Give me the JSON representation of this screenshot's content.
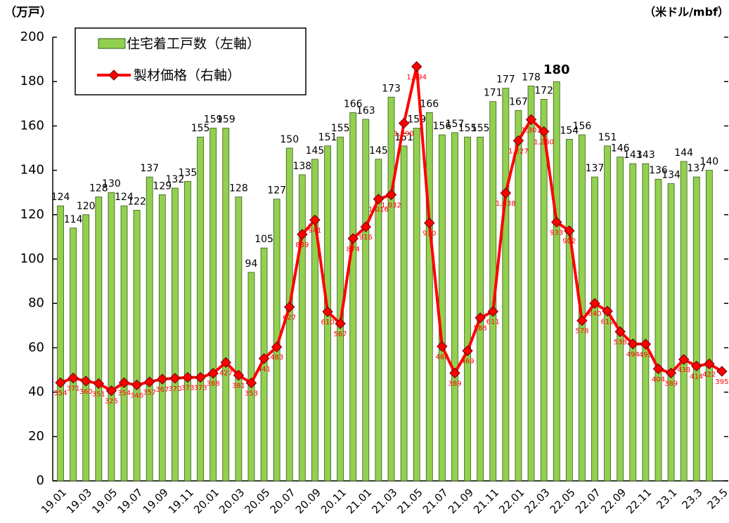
{
  "chart_data": {
    "type": "bar_line",
    "y_label": "（万戸）",
    "y2_label": "（米ドル/mbf）",
    "categories": [
      "19.01",
      null,
      "19.03",
      null,
      "19.05",
      null,
      "19.07",
      null,
      "19.09",
      null,
      "19.11",
      null,
      "20.01",
      null,
      "20.03",
      null,
      "20.05",
      null,
      "20.07",
      null,
      "20.09",
      null,
      "20.11",
      null,
      "21.01",
      null,
      "21.03",
      null,
      "21.05",
      null,
      "21.07",
      null,
      "21.09",
      null,
      "21.11",
      null,
      "22.01",
      null,
      "22.03",
      null,
      "22.05",
      null,
      "22.07",
      null,
      "22.09",
      null,
      "22.11",
      null,
      "23.1",
      null,
      "23.3",
      null,
      "23.5"
    ],
    "series": [
      {
        "name": "住宅着工戸数（左軸）",
        "color": "#92d050",
        "kind": "bar",
        "values": [
          124,
          114,
          120,
          128,
          130,
          124,
          122,
          137,
          129,
          132,
          135,
          155,
          159,
          159,
          128,
          94,
          105,
          127,
          150,
          138,
          145,
          151,
          155,
          166,
          163,
          145,
          173,
          151,
          159,
          166,
          156,
          157,
          155,
          155,
          171,
          177,
          167,
          178,
          172,
          180,
          154,
          156,
          137,
          151,
          146,
          143,
          143,
          136,
          134,
          144,
          137,
          140,
          null
        ]
      },
      {
        "name": "製材価格（右軸）",
        "color": "#ff0000",
        "kind": "line",
        "axis": "y2",
        "values": [
          354,
          371,
          360,
          351,
          325,
          354,
          346,
          357,
          367,
          370,
          373,
          373,
          388,
          427,
          381,
          353,
          441,
          483,
          627,
          889,
          941,
          610,
          567,
          874,
          916,
          1016,
          1032,
          1290,
          1494,
          930,
          485,
          389,
          469,
          588,
          611,
          1038,
          1227,
          1303,
          1260,
          933,
          902,
          578,
          640,
          612,
          538,
          494,
          493,
          404,
          389,
          438,
          414,
          422,
          395
        ],
        "value_labels": [
          "354",
          "371",
          "360",
          "351",
          "325",
          "354",
          "346",
          "357",
          "367",
          "370",
          "373",
          "373",
          "388",
          "427",
          "381",
          "353",
          "441",
          "483",
          "627",
          "889",
          "941",
          "610",
          "567",
          "874",
          "916",
          "1,016",
          "1,032",
          "1,290",
          "1,494",
          "930",
          "485",
          "389",
          "469",
          "588",
          "611",
          "1,038",
          "1,227",
          "1,303",
          "1,260",
          "933",
          "902",
          "578",
          "640",
          "612",
          "538",
          "494",
          "493",
          "404",
          "389",
          "438",
          "414",
          "422",
          "395"
        ]
      }
    ],
    "ylim": [
      0,
      200
    ],
    "yticks": [
      0,
      20,
      40,
      60,
      80,
      100,
      120,
      140,
      160,
      180,
      200
    ],
    "y2lim": [
      0,
      1600
    ],
    "legend": "top-left"
  }
}
